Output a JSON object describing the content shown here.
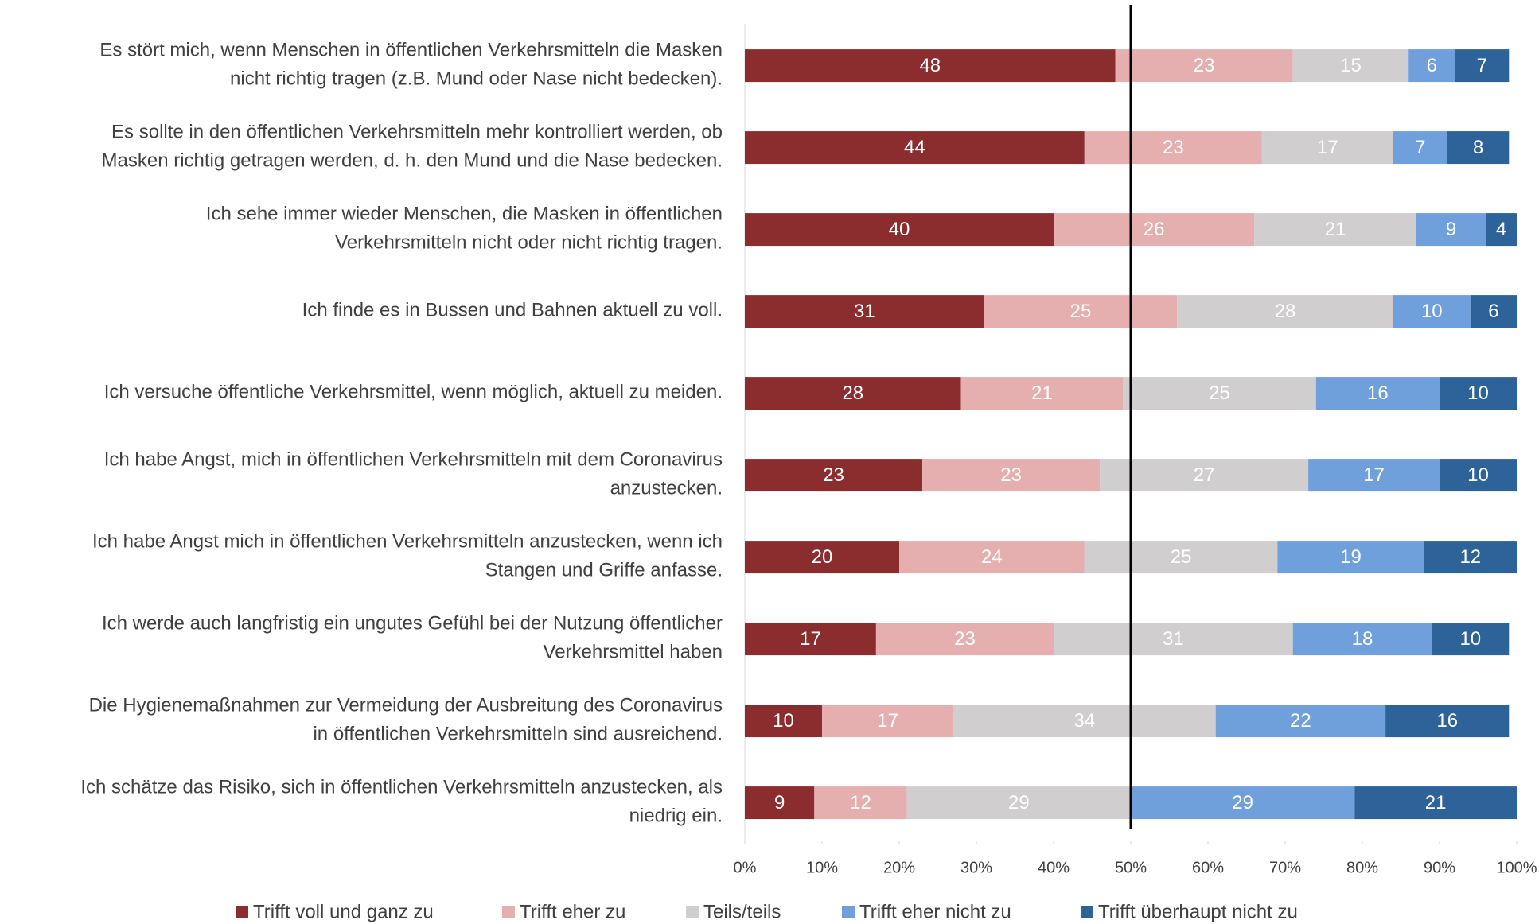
{
  "chart_data": {
    "type": "stacked_barh",
    "categories": [
      "Es stört mich, wenn Menschen in öffentlichen Verkehrsmitteln die Masken\nnicht richtig tragen (z.B. Mund oder Nase nicht bedecken).",
      "Es sollte in den öffentlichen Verkehrsmitteln mehr kontrolliert werden, ob\nMasken richtig getragen werden, d. h. den Mund und die Nase bedecken.",
      "Ich sehe immer wieder Menschen, die Masken in öffentlichen\nVerkehrsmitteln nicht oder nicht richtig tragen.",
      "Ich finde es in Bussen und Bahnen aktuell zu voll.",
      "Ich versuche öffentliche Verkehrsmittel, wenn möglich, aktuell zu meiden.",
      "Ich habe Angst, mich in öffentlichen Verkehrsmitteln mit dem Coronavirus\nanzustecken.",
      "Ich habe Angst mich in öffentlichen Verkehrsmitteln anzustecken, wenn ich\nStangen und Griffe anfasse.",
      "Ich werde auch langfristig ein ungutes Gefühl bei der Nutzung öffentlicher\nVerkehrsmittel haben",
      "Die Hygienemaßnahmen zur Vermeidung der Ausbreitung des Coronavirus\nin öffentlichen Verkehrsmitteln sind ausreichend.",
      "Ich schätze das Risiko, sich in öffentlichen Verkehrsmitteln anzustecken, als\nniedrig ein."
    ],
    "series": [
      {
        "name": "Trifft voll und ganz zu",
        "color": "#8b2d2f",
        "values": [
          48,
          44,
          40,
          31,
          28,
          23,
          20,
          17,
          10,
          9
        ]
      },
      {
        "name": "Trifft eher zu",
        "color": "#e6afaf",
        "values": [
          23,
          23,
          26,
          25,
          21,
          23,
          24,
          23,
          17,
          12
        ]
      },
      {
        "name": "Teils/teils",
        "color": "#d0cece",
        "values": [
          15,
          17,
          21,
          28,
          25,
          27,
          25,
          31,
          34,
          29
        ]
      },
      {
        "name": "Trifft eher nicht zu",
        "color": "#6fa0dc",
        "values": [
          6,
          7,
          9,
          10,
          16,
          17,
          19,
          18,
          22,
          29
        ]
      },
      {
        "name": "Trifft überhaupt nicht zu",
        "color": "#2e6399",
        "values": [
          7,
          8,
          4,
          6,
          10,
          10,
          12,
          10,
          16,
          21
        ]
      }
    ],
    "xlim": [
      0,
      100
    ],
    "xticks": [
      {
        "value": 0,
        "label": "0%"
      },
      {
        "value": 10,
        "label": "10%"
      },
      {
        "value": 20,
        "label": "20%"
      },
      {
        "value": 30,
        "label": "30%"
      },
      {
        "value": 40,
        "label": "40%"
      },
      {
        "value": 50,
        "label": "50%"
      },
      {
        "value": 60,
        "label": "60%"
      },
      {
        "value": 70,
        "label": "70%"
      },
      {
        "value": 80,
        "label": "80%"
      },
      {
        "value": 90,
        "label": "90%"
      },
      {
        "value": 100,
        "label": "100%"
      }
    ],
    "reference_line": 50,
    "legend": "bottom"
  }
}
